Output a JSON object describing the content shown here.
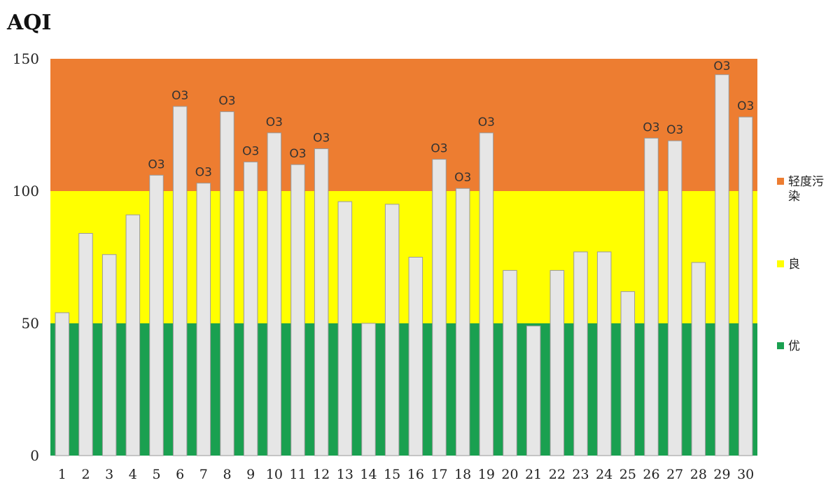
{
  "chart_data": {
    "type": "bar",
    "title": "AQI",
    "xlabel": "",
    "ylabel": "",
    "ylim": [
      0,
      150
    ],
    "yticks": [
      0,
      50,
      100,
      150
    ],
    "grid": false,
    "legend_placement": "right",
    "bands": [
      {
        "name": "轻度污染",
        "from": 100,
        "to": 150,
        "color": "#ED7D31"
      },
      {
        "name": "良",
        "from": 50,
        "to": 100,
        "color": "#FFFF00"
      },
      {
        "name": "优",
        "from": 0,
        "to": 50,
        "color": "#1AA050"
      }
    ],
    "categories": [
      "1",
      "2",
      "3",
      "4",
      "5",
      "6",
      "7",
      "8",
      "9",
      "10",
      "11",
      "12",
      "13",
      "14",
      "15",
      "16",
      "17",
      "18",
      "19",
      "20",
      "21",
      "22",
      "23",
      "24",
      "25",
      "26",
      "27",
      "28",
      "29",
      "30"
    ],
    "series": [
      {
        "values": [
          54,
          84,
          76,
          91,
          106,
          132,
          103,
          130,
          111,
          122,
          110,
          116,
          96,
          50,
          95,
          75,
          112,
          101,
          122,
          70,
          49,
          70,
          77,
          77,
          62,
          120,
          119,
          73,
          144,
          128
        ],
        "color": "#E6E6E6"
      }
    ],
    "data_labels": [
      "",
      "",
      "",
      "",
      "O3",
      "O3",
      "O3",
      "O3",
      "O3",
      "O3",
      "O3",
      "O3",
      "",
      "",
      "",
      "",
      "O3",
      "O3",
      "O3",
      "",
      "",
      "",
      "",
      "",
      "",
      "O3",
      "O3",
      "",
      "O3",
      "O3"
    ]
  }
}
